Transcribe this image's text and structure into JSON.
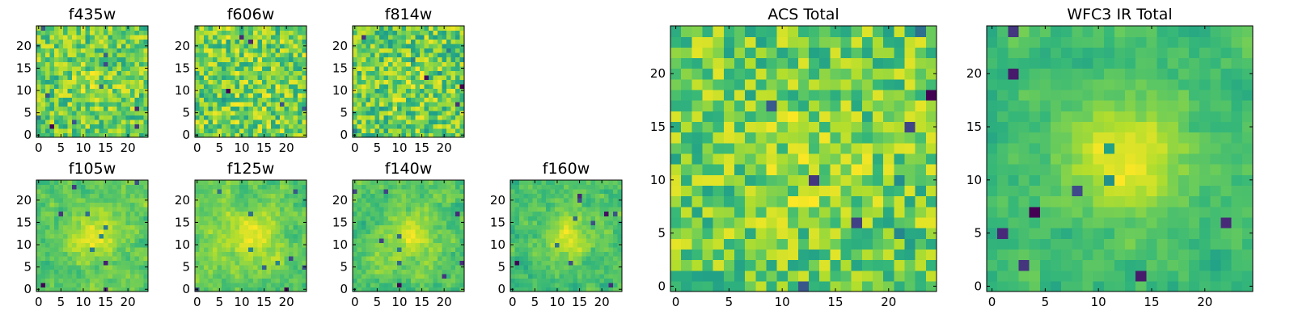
{
  "figure": {
    "colormap": "viridis",
    "colors": [
      "#440154",
      "#3b528b",
      "#21918c",
      "#5ec962",
      "#fde725"
    ]
  },
  "chart_data": [
    {
      "type": "heatmap",
      "id": "f435w",
      "title": "f435w",
      "grid": [
        25,
        25
      ],
      "xlim": [
        0,
        24
      ],
      "ylim": [
        0,
        24
      ],
      "xticks": [
        0,
        5,
        10,
        15,
        20
      ],
      "yticks": [
        0,
        5,
        10,
        15,
        20
      ],
      "seed": 11,
      "noise": 0.85,
      "blob": 0.15,
      "smooth": 0
    },
    {
      "type": "heatmap",
      "id": "f606w",
      "title": "f606w",
      "grid": [
        25,
        25
      ],
      "xlim": [
        0,
        24
      ],
      "ylim": [
        0,
        24
      ],
      "xticks": [
        0,
        5,
        10,
        15,
        20
      ],
      "yticks": [
        0,
        5,
        10,
        15,
        20
      ],
      "seed": 23,
      "noise": 0.95,
      "blob": 0.05,
      "smooth": 0
    },
    {
      "type": "heatmap",
      "id": "f814w",
      "title": "f814w",
      "grid": [
        25,
        25
      ],
      "xlim": [
        0,
        24
      ],
      "ylim": [
        0,
        24
      ],
      "xticks": [
        0,
        5,
        10,
        15,
        20
      ],
      "yticks": [
        0,
        5,
        10,
        15,
        20
      ],
      "seed": 37,
      "noise": 0.9,
      "blob": 0.1,
      "smooth": 0
    },
    {
      "type": "heatmap",
      "id": "f105w",
      "title": "f105w",
      "grid": [
        25,
        25
      ],
      "xlim": [
        0,
        24
      ],
      "ylim": [
        0,
        24
      ],
      "xticks": [
        0,
        5,
        10,
        15,
        20
      ],
      "yticks": [
        0,
        5,
        10,
        15,
        20
      ],
      "seed": 41,
      "noise": 0.55,
      "blob": 0.45,
      "smooth": 1
    },
    {
      "type": "heatmap",
      "id": "f125w",
      "title": "f125w",
      "grid": [
        25,
        25
      ],
      "xlim": [
        0,
        24
      ],
      "ylim": [
        0,
        24
      ],
      "xticks": [
        0,
        5,
        10,
        15,
        20
      ],
      "yticks": [
        0,
        5,
        10,
        15,
        20
      ],
      "seed": 53,
      "noise": 0.6,
      "blob": 0.4,
      "smooth": 1
    },
    {
      "type": "heatmap",
      "id": "f140w",
      "title": "f140w",
      "grid": [
        25,
        25
      ],
      "xlim": [
        0,
        24
      ],
      "ylim": [
        0,
        24
      ],
      "xticks": [
        0,
        5,
        10,
        15,
        20
      ],
      "yticks": [
        0,
        5,
        10,
        15,
        20
      ],
      "seed": 67,
      "noise": 0.6,
      "blob": 0.4,
      "smooth": 1
    },
    {
      "type": "heatmap",
      "id": "f160w",
      "title": "f160w",
      "grid": [
        25,
        25
      ],
      "xlim": [
        0,
        24
      ],
      "ylim": [
        0,
        24
      ],
      "xticks": [
        0,
        5,
        10,
        15,
        20
      ],
      "yticks": [
        0,
        5,
        10,
        15,
        20
      ],
      "seed": 79,
      "noise": 0.55,
      "blob": 0.45,
      "smooth": 1
    },
    {
      "type": "heatmap",
      "id": "acs-total",
      "title": "ACS Total",
      "grid": [
        25,
        25
      ],
      "xlim": [
        0,
        24
      ],
      "ylim": [
        0,
        24
      ],
      "xticks": [
        0,
        5,
        10,
        15,
        20
      ],
      "yticks": [
        0,
        5,
        10,
        15,
        20
      ],
      "seed": 97,
      "noise": 0.85,
      "blob": 0.15,
      "smooth": 0
    },
    {
      "type": "heatmap",
      "id": "wfc3-ir-total",
      "title": "WFC3 IR Total",
      "grid": [
        25,
        25
      ],
      "xlim": [
        0,
        24
      ],
      "ylim": [
        0,
        24
      ],
      "xticks": [
        0,
        5,
        10,
        15,
        20
      ],
      "yticks": [
        0,
        5,
        10,
        15,
        20
      ],
      "seed": 113,
      "noise": 0.45,
      "blob": 0.55,
      "smooth": 1
    }
  ]
}
